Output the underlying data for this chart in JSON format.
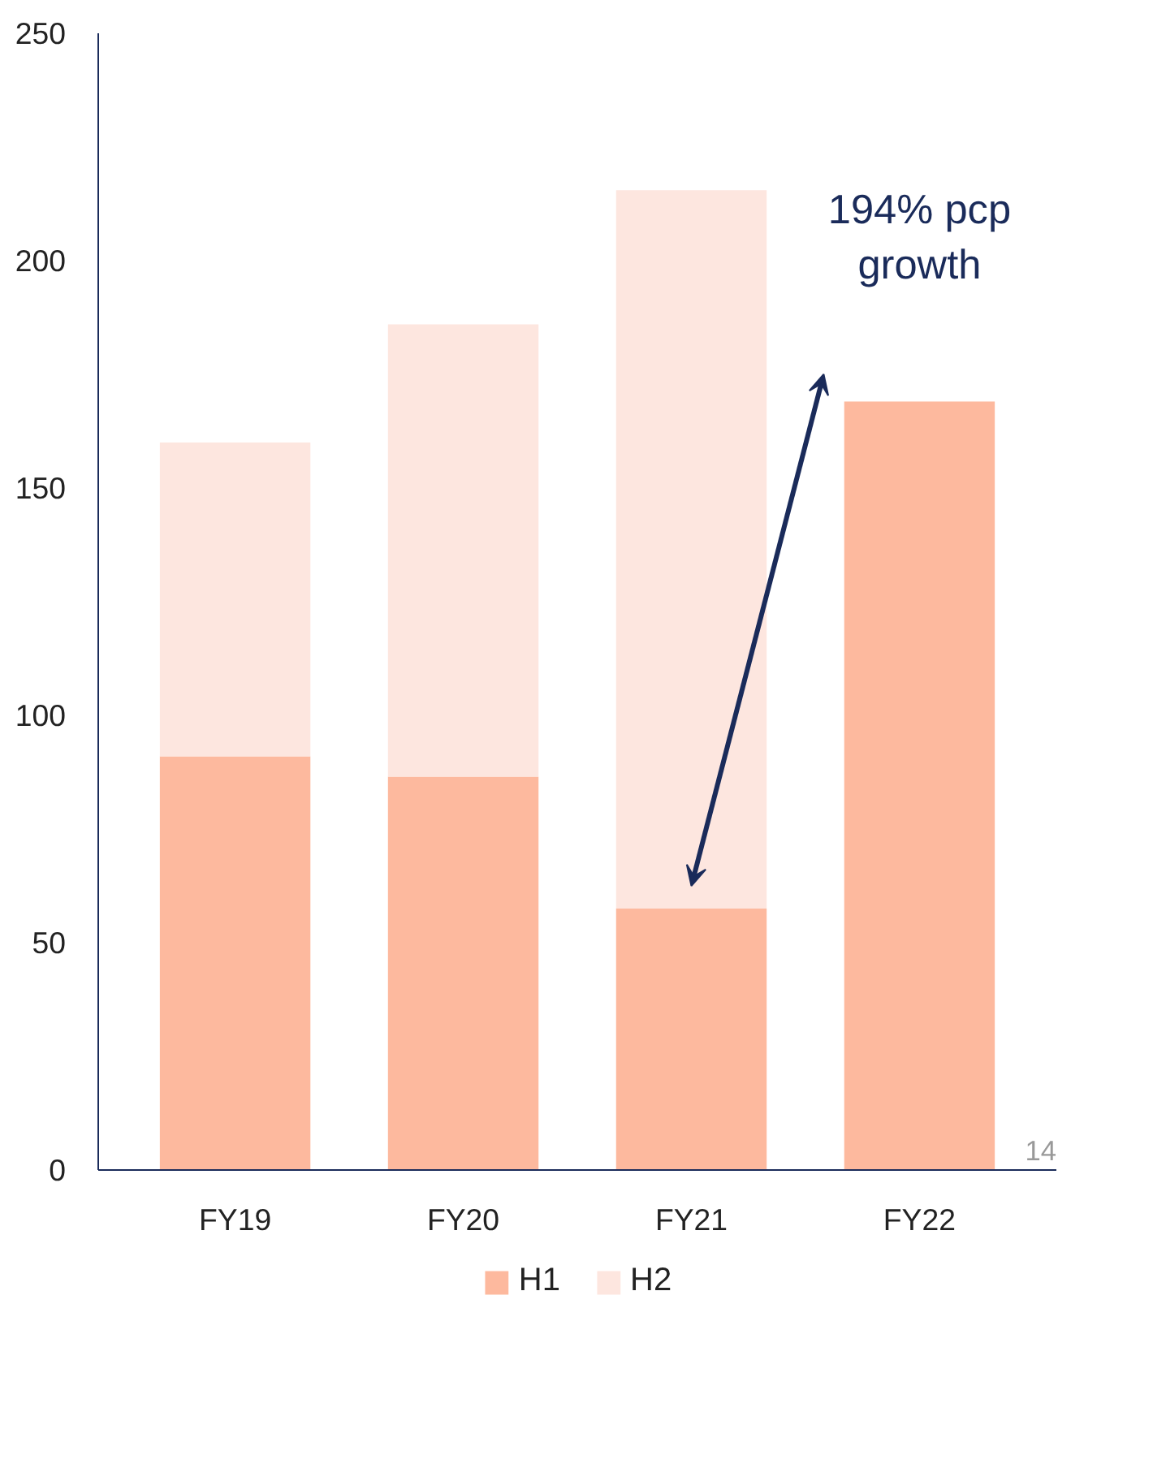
{
  "chart_data": {
    "type": "bar",
    "stacked": true,
    "categories": [
      "FY19",
      "FY20",
      "FY21",
      "FY22"
    ],
    "series": [
      {
        "name": "H1",
        "color": "#fdb99e",
        "values": [
          91,
          86.5,
          57.5,
          169
        ]
      },
      {
        "name": "H2",
        "color": "#fde6df",
        "values": [
          69,
          99.5,
          158,
          null
        ]
      }
    ],
    "ylim": [
      0,
      250
    ],
    "yticks": [
      0,
      50,
      100,
      150,
      200,
      250
    ],
    "grid": false,
    "legend": "bottom",
    "annotations": [
      "194% pcp growth",
      "14"
    ]
  }
}
